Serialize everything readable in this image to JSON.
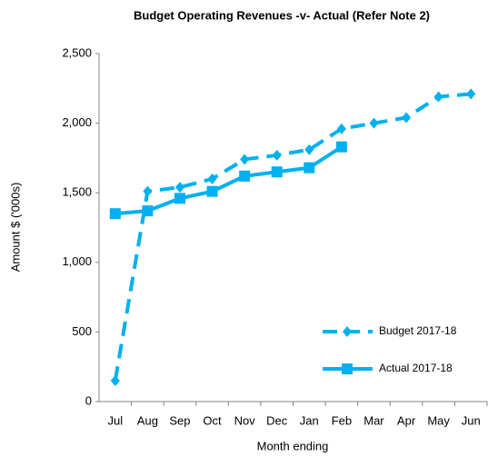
{
  "chart_data": {
    "type": "line",
    "title": "Budget Operating Revenues -v- Actual (Refer Note 2)",
    "y_label": "Amount $ ('000s)",
    "x_label": "Month ending",
    "categories": [
      "Jul",
      "Aug",
      "Sep",
      "Oct",
      "Nov",
      "Dec",
      "Jan",
      "Feb",
      "Mar",
      "Apr",
      "May",
      "Jun"
    ],
    "series": [
      {
        "name": "Budget 2017-18",
        "color": "#00b0f0",
        "dashed": true,
        "marker": "diamond",
        "values": [
          150,
          1510,
          1540,
          1600,
          1740,
          1770,
          1810,
          1960,
          2000,
          2040,
          2190,
          2210
        ]
      },
      {
        "name": "Actual 2017-18",
        "color": "#00b0f0",
        "dashed": false,
        "marker": "square",
        "values": [
          1350,
          1370,
          1460,
          1510,
          1620,
          1650,
          1680,
          1830,
          null,
          null,
          null,
          null
        ]
      }
    ],
    "ylim": [
      0,
      2500
    ],
    "yticks": [
      0,
      500,
      {
        "value": 1000,
        "label": "1,000"
      },
      {
        "value": 1500,
        "label": "1,500"
      },
      {
        "value": 2000,
        "label": "2,000"
      },
      {
        "value": 2500,
        "label": "2,500"
      }
    ],
    "grid": false,
    "legend": "lower right"
  }
}
